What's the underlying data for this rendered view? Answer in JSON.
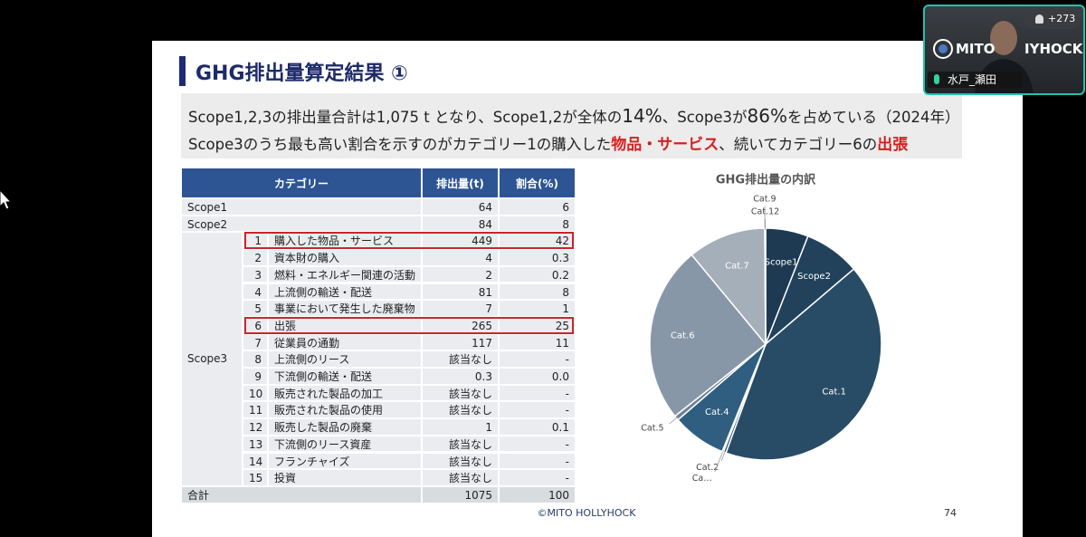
{
  "video_overlay": {
    "participants_badge": "+273",
    "logo_left": "MITO",
    "logo_right": "IYHOCK",
    "speaker_name": "水戸_瀬田"
  },
  "slide": {
    "title": "GHG排出量算定結果 ①",
    "summary": [
      [
        {
          "text": "Scope1,2,3の排出量合計は1,075 t となり、Scope1,2が全体の"
        },
        {
          "text": "14%",
          "style": "large"
        },
        {
          "text": "、Scope3が"
        },
        {
          "text": "86%",
          "style": "large"
        },
        {
          "text": "を占めている（2024年）"
        }
      ],
      [
        {
          "text": "Scope3のうち最も高い割合を示すのがカテゴリー1の購入した"
        },
        {
          "text": "物品・サービス",
          "style": "red"
        },
        {
          "text": "、続いてカテゴリー6の"
        },
        {
          "text": "出張",
          "style": "red"
        }
      ]
    ],
    "table": {
      "headers": [
        "カテゴリー",
        "排出量(t)",
        "割合(%)"
      ],
      "scopes": [
        {
          "label": "Scope1",
          "emission": "64",
          "share": "6"
        },
        {
          "label": "Scope2",
          "emission": "84",
          "share": "8"
        }
      ],
      "scope3": {
        "label": "Scope3",
        "items": [
          {
            "no": "1",
            "name": "購入した物品・サービス",
            "emission": "449",
            "share": "42",
            "highlighted": true
          },
          {
            "no": "2",
            "name": "資本財の購入",
            "emission": "4",
            "share": "0.3"
          },
          {
            "no": "3",
            "name": "燃料・エネルギー関連の活動",
            "emission": "2",
            "share": "0.2"
          },
          {
            "no": "4",
            "name": "上流側の輸送・配送",
            "emission": "81",
            "share": "8"
          },
          {
            "no": "5",
            "name": "事業において発生した廃棄物",
            "emission": "7",
            "share": "1"
          },
          {
            "no": "6",
            "name": "出張",
            "emission": "265",
            "share": "25",
            "highlighted": true
          },
          {
            "no": "7",
            "name": "従業員の通勤",
            "emission": "117",
            "share": "11"
          },
          {
            "no": "8",
            "name": "上流側のリース",
            "emission": "該当なし",
            "share": "-"
          },
          {
            "no": "9",
            "name": "下流側の輸送・配送",
            "emission": "0.3",
            "share": "0.0"
          },
          {
            "no": "10",
            "name": "販売された製品の加工",
            "emission": "該当なし",
            "share": "-"
          },
          {
            "no": "11",
            "name": "販売された製品の使用",
            "emission": "該当なし",
            "share": "-"
          },
          {
            "no": "12",
            "name": "販売した製品の廃棄",
            "emission": "1",
            "share": "0.1"
          },
          {
            "no": "13",
            "name": "下流側のリース資産",
            "emission": "該当なし",
            "share": "-"
          },
          {
            "no": "14",
            "name": "フランチャイズ",
            "emission": "該当なし",
            "share": "-"
          },
          {
            "no": "15",
            "name": "投資",
            "emission": "該当なし",
            "share": "-"
          }
        ]
      },
      "total": {
        "label": "合計",
        "emission": "1075",
        "share": "100"
      }
    },
    "footer": "©MITO HOLLYHOCK",
    "page_number": "74"
  },
  "chart_data": {
    "type": "pie",
    "title": "GHG排出量の内訳",
    "categories": [
      "Scope1",
      "Scope2",
      "Cat.1",
      "Cat.2",
      "Ca…",
      "Cat.4",
      "Cat.5",
      "Cat.6",
      "Cat.7",
      "Cat.9",
      "Cat.12"
    ],
    "values": [
      64,
      84,
      449,
      4,
      2,
      81,
      7,
      265,
      117,
      0.3,
      1
    ],
    "colors": [
      "#1e3a52",
      "#22425c",
      "#284c66",
      "#2c5672",
      "#2e5a78",
      "#2f5e80",
      "#6f8195",
      "#8797a8",
      "#a5afba",
      "#b6bec8",
      "#c3cad2"
    ]
  }
}
